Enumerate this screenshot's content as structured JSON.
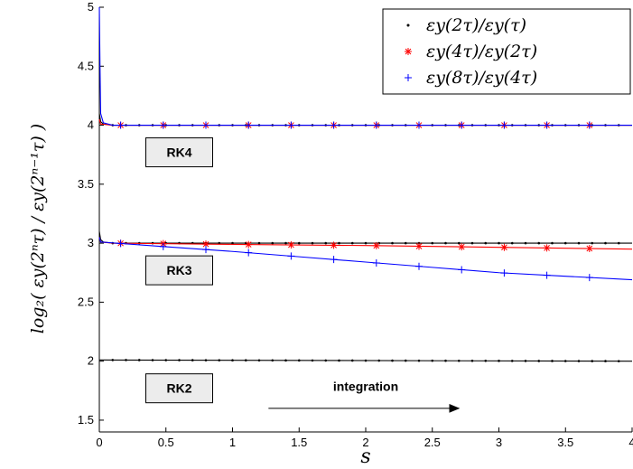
{
  "chart_data": {
    "type": "line",
    "xlabel": "s",
    "ylabel": "log₂( εy(2ⁿτ) / εy(2ⁿ⁻¹τ) )",
    "xlim": [
      0,
      4
    ],
    "ylim": [
      1.4,
      5
    ],
    "x_ticks": [
      "0",
      "0.5",
      "1",
      "1.5",
      "2",
      "2.5",
      "3",
      "3.5",
      "4"
    ],
    "y_ticks": [
      "1.5",
      "2",
      "2.5",
      "3",
      "3.5",
      "4",
      "4.5",
      "5"
    ],
    "grid": false,
    "legend_position": "top-right",
    "series": [
      {
        "name": "εy(2τ)/εy(τ)",
        "color": "#000000",
        "marker": "dot",
        "groups": [
          {
            "points": [
              [
                0,
                4.1
              ],
              [
                0.01,
                4.03
              ],
              [
                0.03,
                4.01
              ],
              [
                0.1,
                4.0
              ],
              [
                4,
                4.0
              ]
            ]
          },
          {
            "points": [
              [
                0,
                3.1
              ],
              [
                0.01,
                3.03
              ],
              [
                0.03,
                3.01
              ],
              [
                0.1,
                3.0
              ],
              [
                4,
                3.0
              ]
            ]
          },
          {
            "points": [
              [
                0,
                2.01
              ],
              [
                4,
                2.0
              ]
            ]
          }
        ]
      },
      {
        "name": "εy(4τ)/εy(2τ)",
        "color": "#ff0000",
        "marker": "asterisk",
        "groups": [
          {
            "points": [
              [
                0,
                4.05
              ],
              [
                0.01,
                4.01
              ],
              [
                0.1,
                4.0
              ],
              [
                4,
                4.0
              ]
            ]
          },
          {
            "points": [
              [
                0,
                3.05
              ],
              [
                0.01,
                3.01
              ],
              [
                0.1,
                3.0
              ],
              [
                1.0,
                2.99
              ],
              [
                2.0,
                2.98
              ],
              [
                3.0,
                2.965
              ],
              [
                4,
                2.95
              ]
            ]
          }
        ]
      },
      {
        "name": "εy(8τ)/εy(4τ)",
        "color": "#0000ff",
        "marker": "plus",
        "groups": [
          {
            "points": [
              [
                0,
                5.0
              ],
              [
                0.005,
                4.5
              ],
              [
                0.01,
                4.1
              ],
              [
                0.03,
                4.02
              ],
              [
                0.1,
                4.0
              ],
              [
                4,
                4.0
              ]
            ]
          },
          {
            "points": [
              [
                0,
                3.05
              ],
              [
                0.01,
                3.01
              ],
              [
                0.5,
                2.97
              ],
              [
                1.0,
                2.93
              ],
              [
                1.5,
                2.885
              ],
              [
                2.0,
                2.84
              ],
              [
                2.5,
                2.795
              ],
              [
                3.0,
                2.75
              ],
              [
                3.5,
                2.72
              ],
              [
                4,
                2.69
              ]
            ]
          }
        ]
      }
    ],
    "annotations": [
      {
        "text": "RK4",
        "x": 0.6,
        "y": 3.77
      },
      {
        "text": "RK3",
        "x": 0.6,
        "y": 2.77
      },
      {
        "text": "RK2",
        "x": 0.6,
        "y": 1.77
      },
      {
        "text": "integration",
        "x": 2.0,
        "y": 1.75
      }
    ],
    "arrow": {
      "from": [
        1.27,
        1.6
      ],
      "to": [
        2.7,
        1.6
      ],
      "color": "#000000"
    }
  }
}
